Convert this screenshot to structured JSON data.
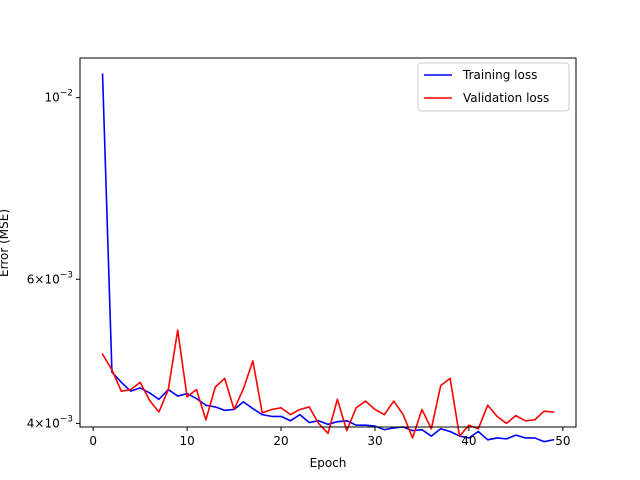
{
  "chart_data": {
    "type": "line",
    "xlabel": "Epoch",
    "ylabel": "Error (MSE)",
    "y_scale": "log",
    "xlim": [
      -1.4,
      51.4
    ],
    "ylim": [
      0.00396,
      0.01118
    ],
    "x_ticks": [
      0,
      10,
      20,
      30,
      40,
      50
    ],
    "x_tick_labels": [
      "0",
      "10",
      "20",
      "30",
      "40",
      "50"
    ],
    "y_ticks": [
      0.004,
      0.006,
      0.01
    ],
    "y_tick_labels": [
      {
        "base": "4×10",
        "exp": "−3"
      },
      {
        "base": "6×10",
        "exp": "−3"
      },
      {
        "base": "10",
        "exp": "−2"
      }
    ],
    "legend_position": "upper right",
    "grid": false,
    "x": [
      1,
      2,
      3,
      4,
      5,
      6,
      7,
      8,
      9,
      10,
      11,
      12,
      13,
      14,
      15,
      16,
      17,
      18,
      19,
      20,
      21,
      22,
      23,
      24,
      25,
      26,
      27,
      28,
      29,
      30,
      31,
      32,
      33,
      34,
      35,
      36,
      37,
      38,
      39,
      40,
      41,
      42,
      43,
      44,
      45,
      46,
      47,
      48,
      49
    ],
    "series": [
      {
        "name": "Training loss",
        "color": "#0000ff",
        "values": [
          0.01068,
          0.00462,
          0.00449,
          0.00438,
          0.00442,
          0.00436,
          0.00428,
          0.0044,
          0.00432,
          0.00435,
          0.00429,
          0.00421,
          0.00419,
          0.00415,
          0.00416,
          0.00425,
          0.00417,
          0.0041,
          0.00408,
          0.00408,
          0.00403,
          0.0041,
          0.00401,
          0.00403,
          0.00399,
          0.00402,
          0.00403,
          0.00398,
          0.00398,
          0.00397,
          0.00393,
          0.00395,
          0.00396,
          0.00392,
          0.00393,
          0.00386,
          0.00394,
          0.00391,
          0.00386,
          0.00384,
          0.00391,
          0.00382,
          0.00384,
          0.00383,
          0.00387,
          0.00384,
          0.00384,
          0.0038,
          0.00382
        ]
      },
      {
        "name": "Validation loss",
        "color": "#ff0000",
        "values": [
          0.00486,
          0.00465,
          0.00438,
          0.0044,
          0.00449,
          0.00427,
          0.00413,
          0.0044,
          0.0052,
          0.00431,
          0.0044,
          0.00404,
          0.00443,
          0.00454,
          0.00416,
          0.00441,
          0.00477,
          0.00412,
          0.00416,
          0.00418,
          0.0041,
          0.00416,
          0.00419,
          0.004,
          0.00389,
          0.00428,
          0.00392,
          0.00418,
          0.00426,
          0.00416,
          0.0041,
          0.00426,
          0.0041,
          0.00384,
          0.00416,
          0.00394,
          0.00445,
          0.00454,
          0.00386,
          0.00398,
          0.00394,
          0.00421,
          0.00408,
          0.004,
          0.00409,
          0.00403,
          0.00404,
          0.00414,
          0.00413
        ]
      }
    ]
  }
}
